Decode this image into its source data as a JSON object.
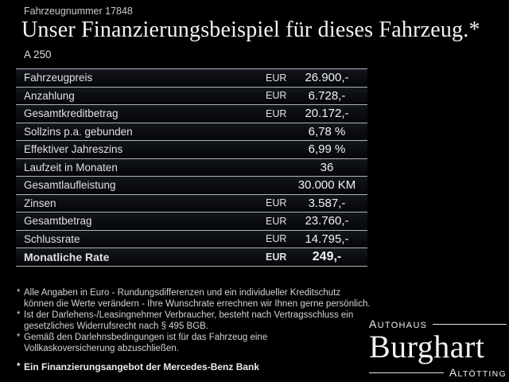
{
  "header": {
    "vehicle_number": "Fahrzeugnummer 17848",
    "title": "Unser Finanzierungsbeispiel für dieses Fahrzeug.*",
    "model": "A 250"
  },
  "table": {
    "rows": [
      {
        "label": "Fahrzeugpreis",
        "currency": "EUR",
        "value": "26.900,-"
      },
      {
        "label": "Anzahlung",
        "currency": "EUR",
        "value": "6.728,-"
      },
      {
        "label": "Gesamtkreditbetrag",
        "currency": "EUR",
        "value": "20.172,-"
      },
      {
        "label": "Sollzins p.a. gebunden",
        "currency": "",
        "value": "6,78 %"
      },
      {
        "label": "Effektiver Jahreszins",
        "currency": "",
        "value": "6,99 %"
      },
      {
        "label": "Laufzeit in Monaten",
        "currency": "",
        "value": "36"
      },
      {
        "label": "Gesamtlaufleistung",
        "currency": "",
        "value": "30.000 KM"
      },
      {
        "label": "Zinsen",
        "currency": "EUR",
        "value": "3.587,-"
      },
      {
        "label": "Gesamtbetrag",
        "currency": "EUR",
        "value": "23.760,-"
      },
      {
        "label": "Schlussrate",
        "currency": "EUR",
        "value": "14.795,-"
      },
      {
        "label": "Monatliche Rate",
        "currency": "EUR",
        "value": "249,-"
      }
    ]
  },
  "footnotes": [
    {
      "marker": "*",
      "line1": "Alle Angaben in Euro - Rundungsdifferenzen und ein individueller Kreditschutz",
      "line2": "können die Werte verändern - Ihre Wunschrate errechnen wir Ihnen gerne persönlich."
    },
    {
      "marker": "*",
      "line1": "Ist der Darlehens-/Leasingnehmer Verbraucher, besteht nach Vertragsschluss ein",
      "line2": "gesetzliches Widerrufsrecht nach § 495 BGB."
    },
    {
      "marker": "*",
      "line1": "Gemäß den Darlehnsbedingungen ist für das Fahrzeug eine",
      "line2": "Vollkaskoversicherung abzuschließen."
    }
  ],
  "financing_note": {
    "marker": "*",
    "text": "Ein Finanzierungsangebot der Mercedes-Benz Bank"
  },
  "logo": {
    "top": "AUTOHAUS",
    "name": "Burghart",
    "bottom": "ALTÖTTING"
  },
  "colors": {
    "background": "#000000",
    "separator": "#aeb3bc",
    "text": "#e8eaec",
    "row_background": "#0d1016"
  }
}
